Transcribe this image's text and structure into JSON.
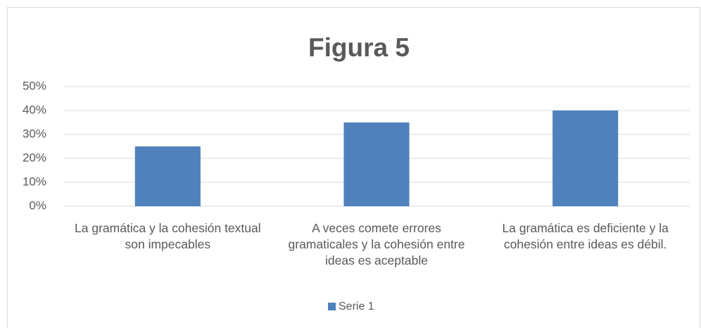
{
  "chart_data": {
    "type": "bar",
    "title": "Figura 5",
    "categories": [
      "La gramática y la cohesión textual son impecables",
      "A veces comete errores gramaticales y la cohesión entre ideas es aceptable",
      "La gramática es deficiente y la cohesión entre ideas es débil."
    ],
    "series": [
      {
        "name": "Serie 1",
        "color": "#4f81bd",
        "values": [
          25,
          35,
          40
        ]
      }
    ],
    "ylim": [
      0,
      50
    ],
    "yticks": [
      {
        "value": 0,
        "label": "0%"
      },
      {
        "value": 10,
        "label": "10%"
      },
      {
        "value": 20,
        "label": "20%"
      },
      {
        "value": 30,
        "label": "30%"
      },
      {
        "value": 40,
        "label": "40%"
      },
      {
        "value": 50,
        "label": "50%"
      }
    ],
    "grid": true,
    "legend": "bottom"
  }
}
